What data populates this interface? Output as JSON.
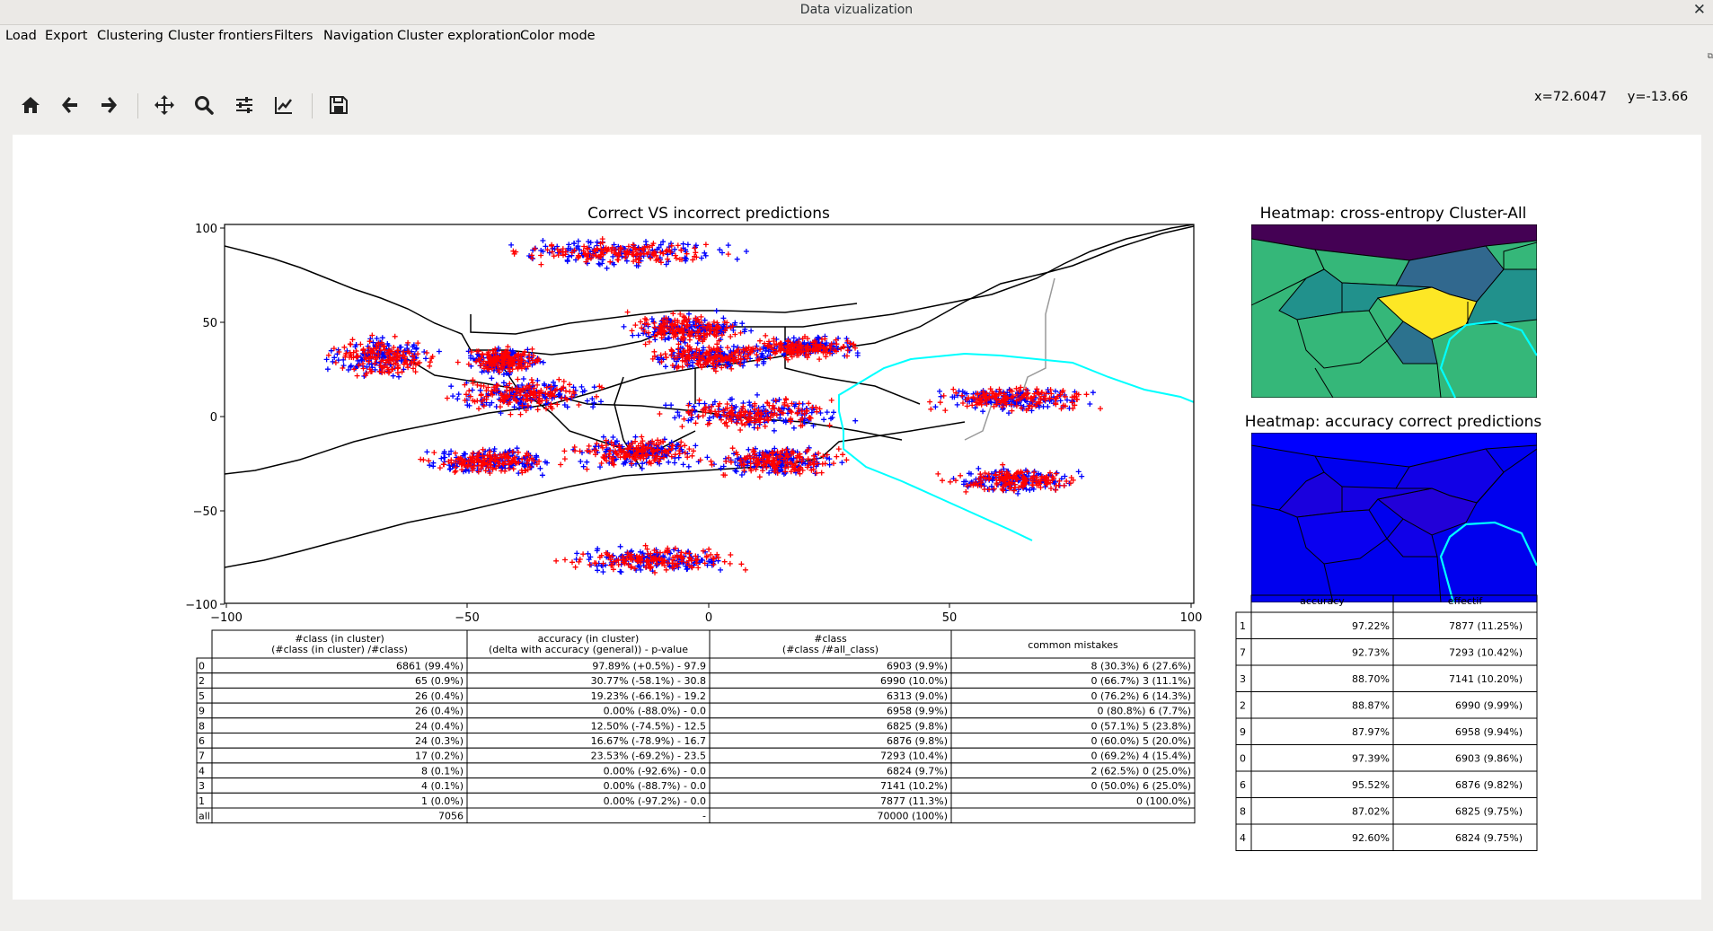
{
  "window": {
    "title": "Data vizualization",
    "close_glyph": "✕"
  },
  "menu": [
    "Load",
    "Export",
    "Clustering",
    "Cluster frontiers",
    "Filters",
    "Navigation",
    "Cluster exploration",
    "Color mode"
  ],
  "toolbar": {
    "buttons": [
      {
        "name": "home-icon"
      },
      {
        "name": "back-arrow-icon"
      },
      {
        "name": "forward-arrow-icon"
      },
      {
        "name": "pan-move-icon"
      },
      {
        "name": "zoom-magnifier-icon"
      },
      {
        "name": "configure-subplots-icon"
      },
      {
        "name": "edit-axis-icon"
      },
      {
        "name": "save-figure-icon"
      }
    ],
    "coords": "x=72.6047     y=-13.66"
  },
  "colors": {
    "correct": "#0000ff",
    "incorrect": "#ff0000",
    "frontier": "#000000",
    "selected_frontier": "#00ffff"
  },
  "chart_data": [
    {
      "type": "scatter",
      "title": "Correct VS incorrect predictions",
      "xlim": [
        -100,
        100
      ],
      "ylim": [
        -100,
        100
      ],
      "xticks": [
        -100,
        -50,
        0,
        50,
        100
      ],
      "yticks": [
        -100,
        -50,
        0,
        50,
        100
      ],
      "markers": "+",
      "series": [
        {
          "color": "#0000ff",
          "clusters": [
            [
              -18,
              85
            ],
            [
              -68,
              30
            ],
            [
              -4,
              45
            ],
            [
              0,
              30
            ],
            [
              10,
              0
            ],
            [
              63,
              8
            ],
            [
              -38,
              10
            ],
            [
              -45,
              -25
            ],
            [
              -15,
              -20
            ],
            [
              14,
              -25
            ],
            [
              63,
              -35
            ],
            [
              -12,
              -77
            ],
            [
              20,
              35
            ],
            [
              -42,
              28
            ]
          ]
        },
        {
          "color": "#ff0000",
          "clusters": [
            [
              -18,
              85
            ],
            [
              -68,
              30
            ],
            [
              -4,
              45
            ],
            [
              0,
              30
            ],
            [
              10,
              0
            ],
            [
              63,
              8
            ],
            [
              -38,
              10
            ],
            [
              -45,
              -25
            ],
            [
              -15,
              -20
            ],
            [
              14,
              -25
            ],
            [
              63,
              -35
            ],
            [
              -12,
              -77
            ],
            [
              20,
              35
            ],
            [
              -42,
              28
            ]
          ]
        }
      ]
    },
    {
      "type": "heatmap",
      "title": "Heatmap: cross-entropy Cluster-All"
    },
    {
      "type": "heatmap",
      "title": "Heatmap: accuracy correct predictions"
    }
  ],
  "main_table": {
    "headers": [
      [
        "#class (in cluster)",
        "(#class (in cluster) /#class)"
      ],
      [
        "accuracy (in cluster)",
        "(delta with accuracy (general)) - p-value"
      ],
      [
        "#class",
        "(#class /#all_class)"
      ],
      [
        "common mistakes"
      ]
    ],
    "rows": [
      [
        "0",
        "6861 (99.4%)",
        "97.89% (+0.5%) - 97.9",
        "6903 (9.9%)",
        "8 (30.3%) 6 (27.6%)"
      ],
      [
        "2",
        "65 (0.9%)",
        "30.77% (-58.1%) - 30.8",
        "6990 (10.0%)",
        "0 (66.7%) 3 (11.1%)"
      ],
      [
        "5",
        "26 (0.4%)",
        "19.23% (-66.1%) - 19.2",
        "6313 (9.0%)",
        "0 (76.2%) 6 (14.3%)"
      ],
      [
        "9",
        "26 (0.4%)",
        "0.00% (-88.0%) - 0.0",
        "6958 (9.9%)",
        "0 (80.8%) 6 (7.7%)"
      ],
      [
        "8",
        "24 (0.4%)",
        "12.50% (-74.5%) - 12.5",
        "6825 (9.8%)",
        "0 (57.1%) 5 (23.8%)"
      ],
      [
        "6",
        "24 (0.3%)",
        "16.67% (-78.9%) - 16.7",
        "6876 (9.8%)",
        "0 (60.0%) 5 (20.0%)"
      ],
      [
        "7",
        "17 (0.2%)",
        "23.53% (-69.2%) - 23.5",
        "7293 (10.4%)",
        "0 (69.2%) 4 (15.4%)"
      ],
      [
        "4",
        "8 (0.1%)",
        "0.00% (-92.6%) - 0.0",
        "6824 (9.7%)",
        "2 (62.5%) 0 (25.0%)"
      ],
      [
        "3",
        "4 (0.1%)",
        "0.00% (-88.7%) - 0.0",
        "7141 (10.2%)",
        "0 (50.0%) 6 (25.0%)"
      ],
      [
        "1",
        "1 (0.0%)",
        "0.00% (-97.2%) - 0.0",
        "7877 (11.3%)",
        "0 (100.0%)"
      ],
      [
        "all",
        "7056",
        "-",
        "70000 (100%)",
        ""
      ]
    ]
  },
  "side_table": {
    "headers": [
      "accuracy",
      "effectif"
    ],
    "rows": [
      [
        "1",
        "97.22%",
        "7877 (11.25%)"
      ],
      [
        "7",
        "92.73%",
        "7293 (10.42%)"
      ],
      [
        "3",
        "88.70%",
        "7141 (10.20%)"
      ],
      [
        "2",
        "88.87%",
        "6990 (9.99%)"
      ],
      [
        "9",
        "87.97%",
        "6958 (9.94%)"
      ],
      [
        "0",
        "97.39%",
        "6903 (9.86%)"
      ],
      [
        "6",
        "95.52%",
        "6876 (9.82%)"
      ],
      [
        "8",
        "87.02%",
        "6825 (9.75%)"
      ],
      [
        "4",
        "92.60%",
        "6824 (9.75%)"
      ]
    ]
  }
}
